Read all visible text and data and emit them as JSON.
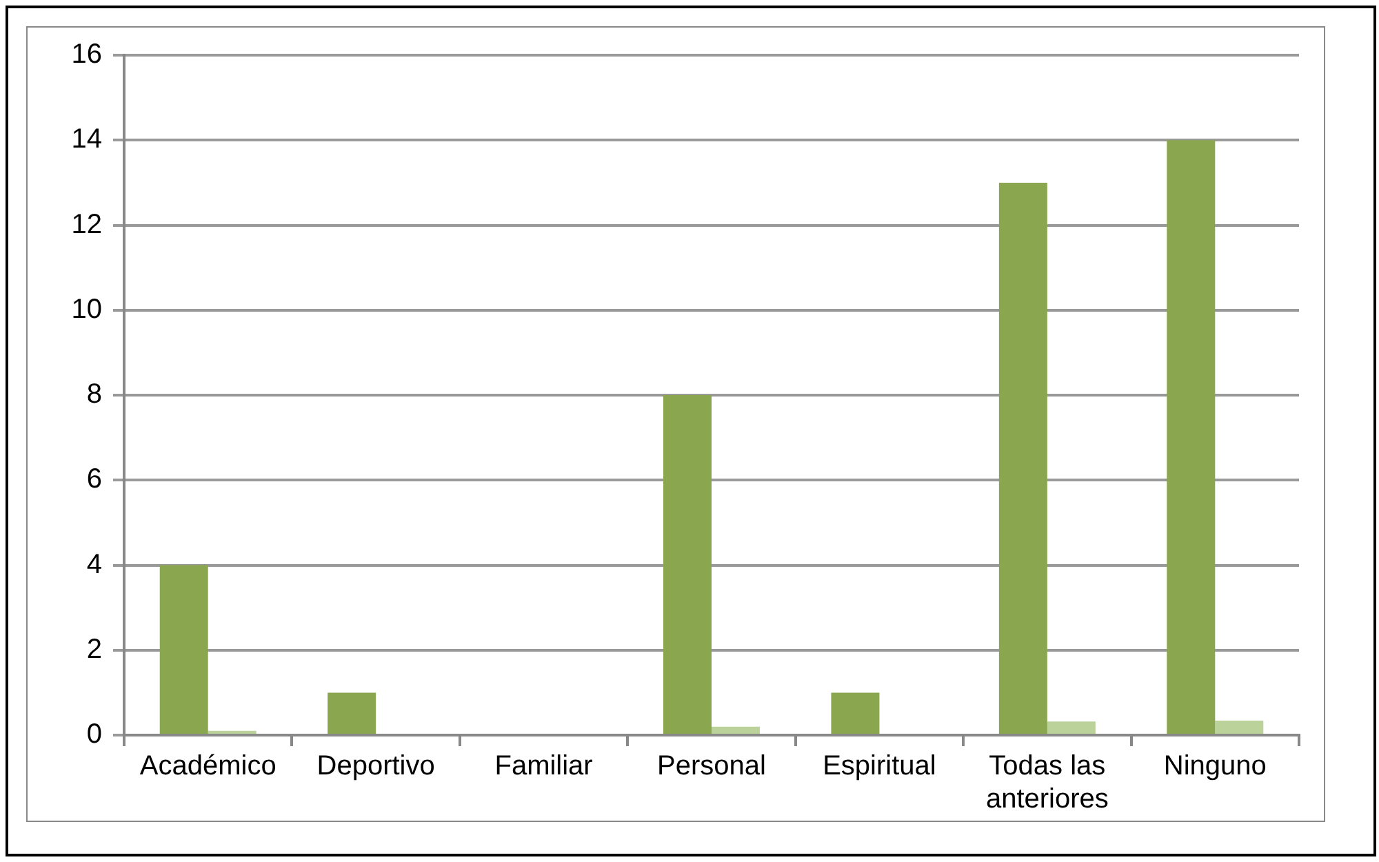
{
  "chart_data": {
    "type": "bar",
    "categories": [
      "Académico",
      "Deportivo",
      "Familiar",
      "Personal",
      "Espiritual",
      "Todas las anteriores",
      "Ninguno"
    ],
    "series": [
      {
        "color": "#8aa64e",
        "values": [
          4,
          1,
          0,
          8,
          1,
          13,
          14
        ]
      },
      {
        "color": "#bcd29b",
        "values": [
          0.1,
          0,
          0,
          0.2,
          0,
          0.32,
          0.34
        ]
      }
    ],
    "ylim": [
      0,
      16
    ],
    "yticks": [
      0,
      2,
      4,
      6,
      8,
      10,
      12,
      14,
      16
    ],
    "grid": "y",
    "legend": false
  }
}
